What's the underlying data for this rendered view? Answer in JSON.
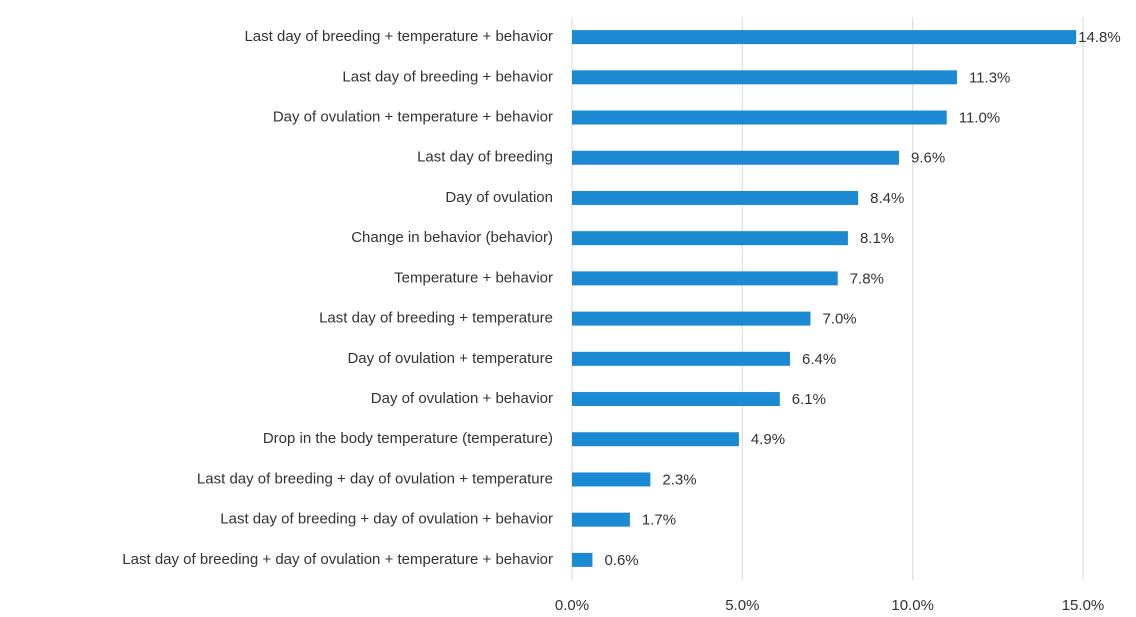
{
  "chart_data": {
    "type": "bar",
    "orientation": "horizontal",
    "categories": [
      "Last day of breeding + temperature + behavior",
      "Last day of breeding + behavior",
      "Day of ovulation + temperature + behavior",
      "Last day of breeding",
      "Day of ovulation",
      "Change in behavior (behavior)",
      "Temperature + behavior",
      "Last day of breeding + temperature",
      "Day of ovulation + temperature",
      "Day of ovulation + behavior",
      "Drop in the body temperature  (temperature)",
      "Last day of breeding + day of ovulation + temperature",
      "Last day of breeding + day of ovulation + behavior",
      "Last day of breeding + day of ovulation + temperature + behavior"
    ],
    "values": [
      14.8,
      11.3,
      11.0,
      9.6,
      8.4,
      8.1,
      7.8,
      7.0,
      6.4,
      6.1,
      4.9,
      2.3,
      1.7,
      0.6
    ],
    "value_labels": [
      "14.8%",
      "11.3%",
      "11.0%",
      "9.6%",
      "8.4%",
      "8.1%",
      "7.8%",
      "7.0%",
      "6.4%",
      "6.1%",
      "4.9%",
      "2.3%",
      "1.7%",
      "0.6%"
    ],
    "color": "#1b8ad3",
    "xlim": [
      0,
      15
    ],
    "xticks": [
      {
        "value": 0,
        "label": "0.0%"
      },
      {
        "value": 5,
        "label": "5.0%"
      },
      {
        "value": 10,
        "label": "10.0%"
      },
      {
        "value": 15,
        "label": "15.0%"
      }
    ],
    "grid": true
  }
}
